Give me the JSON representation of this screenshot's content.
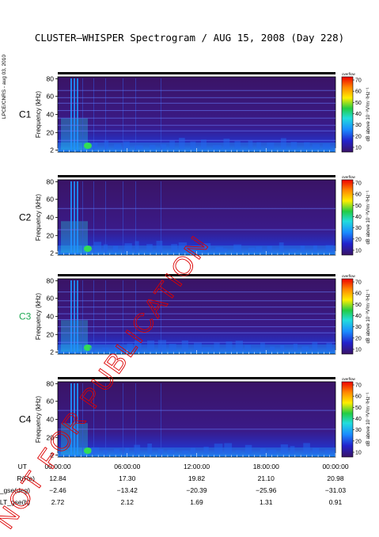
{
  "title": "CLUSTER–WHISPER Spectrogram / AUG 15, 2008 (Day 228)",
  "credit": "LPCE/CNRS - aug 03, 2010",
  "watermark": "NOT FOR PUBLICATION",
  "colors": {
    "background": "#3a1466",
    "accent_c3": "#22aa55",
    "watermark": "#dd0000"
  },
  "chart_data": {
    "type": "heatmap",
    "panels": [
      {
        "name": "C1",
        "ylabel": "Frequency (kHz)",
        "yticks": [
          "80",
          "60",
          "40",
          "20",
          "2"
        ],
        "ylim": [
          2,
          82
        ]
      },
      {
        "name": "C2",
        "ylabel": "Frequency (kHz)",
        "yticks": [
          "80",
          "60",
          "40",
          "20",
          "2"
        ],
        "ylim": [
          2,
          82
        ]
      },
      {
        "name": "C3",
        "ylabel": "Frequency (kHz)",
        "yticks": [
          "80",
          "60",
          "40",
          "20",
          "2"
        ],
        "ylim": [
          2,
          82
        ]
      },
      {
        "name": "C4",
        "ylabel": "Frequency (kHz)",
        "yticks": [
          "80",
          "60",
          "40",
          "20",
          "2"
        ],
        "ylim": [
          2,
          82
        ]
      }
    ],
    "colorbar": {
      "label": "dB above 10⁻⁸V²m⁻²Hz⁻¹",
      "top_label": "overflow",
      "ticks": [
        "70",
        "60",
        "50",
        "40",
        "30",
        "20",
        "10"
      ],
      "range": [
        5,
        72
      ]
    },
    "x_axis": {
      "row_labels": [
        "UT",
        "R(Re)",
        "Lat_gse(deg)",
        "LT_gse(h)"
      ],
      "ticks": [
        {
          "ut": "00:00:00",
          "r": "12.84",
          "lat": "−2.46",
          "lt": "2.72"
        },
        {
          "ut": "06:00:00",
          "r": "17.30",
          "lat": "−13.42",
          "lt": "2.12"
        },
        {
          "ut": "12:00:00",
          "r": "19.82",
          "lat": "−20.39",
          "lt": "1.69"
        },
        {
          "ut": "18:00:00",
          "r": "21.10",
          "lat": "−25.96",
          "lt": "1.31"
        },
        {
          "ut": "00:00:00",
          "r": "20.98",
          "lat": "−31.03",
          "lt": "0.91"
        }
      ]
    },
    "grid": false
  }
}
